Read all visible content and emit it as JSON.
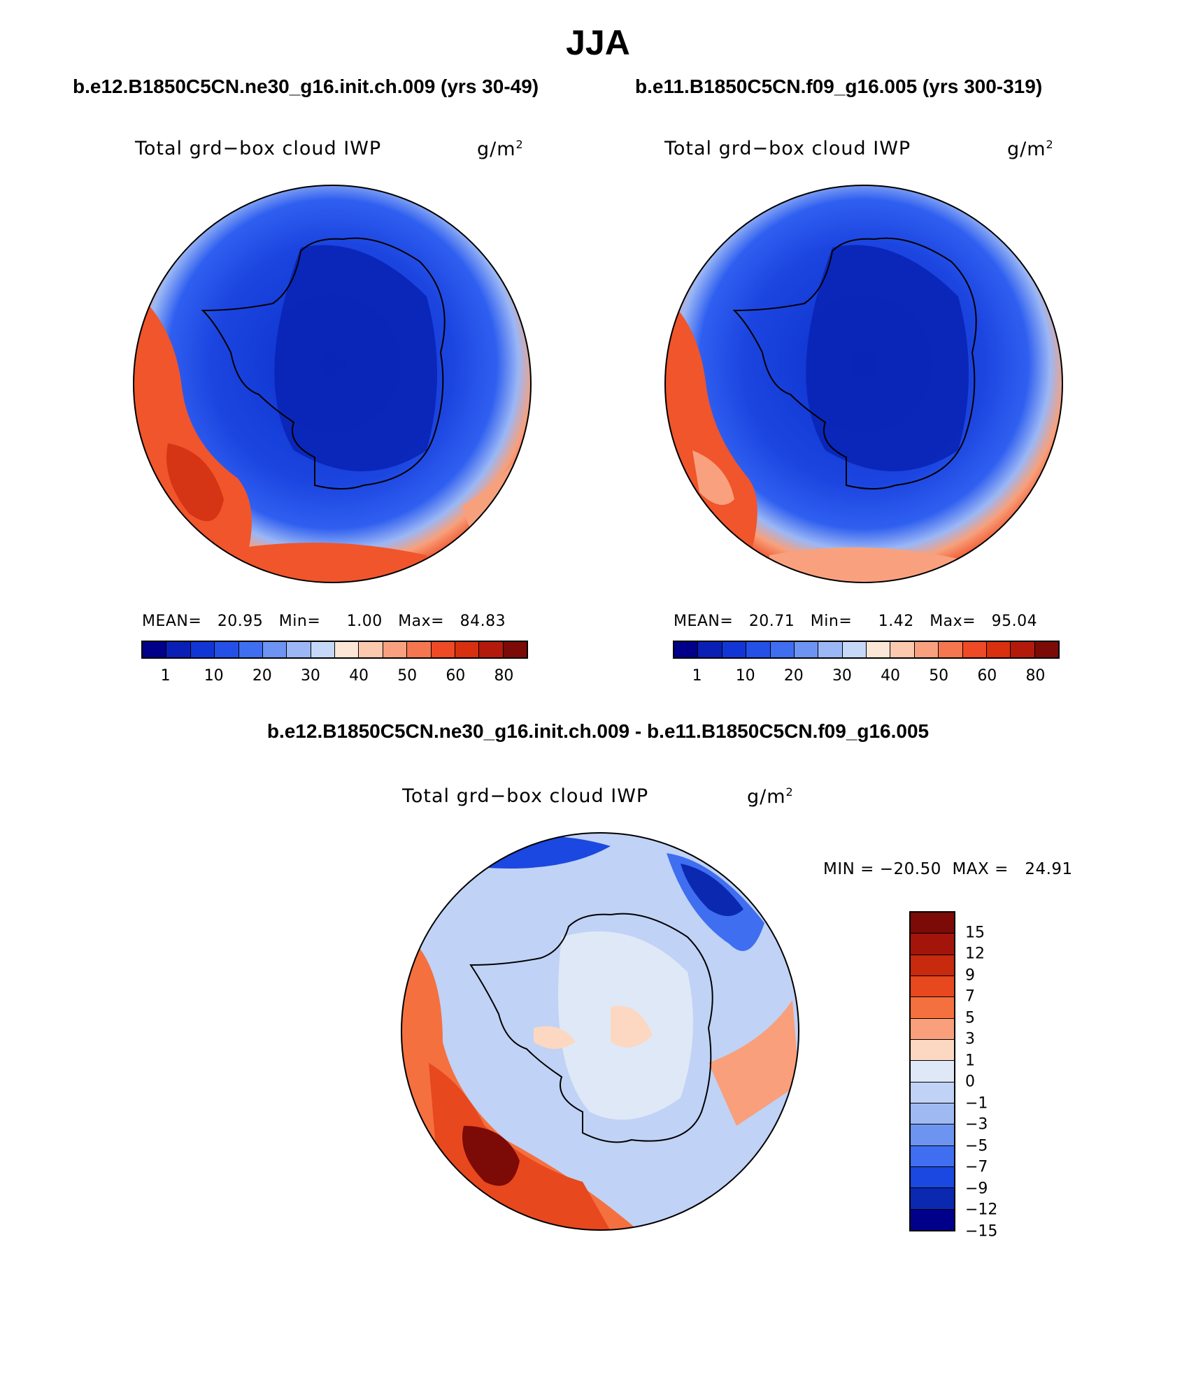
{
  "title": "JJA",
  "panels": [
    {
      "case": "b.e12.B1850C5CN.ne30_g16.init.ch.009 (yrs 30-49)",
      "variable": "Total grd−box cloud IWP",
      "unit_base": "g/m",
      "unit_exp": "2",
      "mean_label": "MEAN=",
      "mean": "20.95",
      "min_label": "Min=",
      "min": "1.00",
      "max_label": "Max=",
      "max": "84.83"
    },
    {
      "case": "b.e11.B1850C5CN.f09_g16.005 (yrs 300-319)",
      "variable": "Total grd−box cloud IWP",
      "unit_base": "g/m",
      "unit_exp": "2",
      "mean_label": "MEAN=",
      "mean": "20.71",
      "min_label": "Min=",
      "min": "1.42",
      "max_label": "Max=",
      "max": "95.04"
    }
  ],
  "colorbar_colors": [
    "#00008a",
    "#0a1fb5",
    "#1236d6",
    "#2450e8",
    "#3f6ef0",
    "#6d94f2",
    "#9bb7f5",
    "#c5d8f7",
    "#fce6d6",
    "#fbc9ad",
    "#f9a17f",
    "#f67650",
    "#ee4a25",
    "#d9300f",
    "#b31a0c",
    "#7c0a06"
  ],
  "colorbar_ticks": [
    "1",
    "10",
    "20",
    "30",
    "40",
    "50",
    "60",
    "80"
  ],
  "diff": {
    "title": "b.e12.B1850C5CN.ne30_g16.init.ch.009 - b.e11.B1850C5CN.f09_g16.005",
    "variable": "Total grd−box cloud IWP",
    "unit_base": "g/m",
    "unit_exp": "2",
    "minmax": "MIN = −20.50  MAX =   24.91",
    "colors": [
      "#7c0a06",
      "#a3150a",
      "#c82a0e",
      "#e8481e",
      "#f5703f",
      "#f99f7b",
      "#fcd8c2",
      "#dfe8f7",
      "#c0d2f5",
      "#9fbaf3",
      "#6d94f0",
      "#3f6ef0",
      "#1b48e0",
      "#0a28b0",
      "#00008a"
    ],
    "ticks": [
      "15",
      "12",
      "9",
      "7",
      "5",
      "3",
      "1",
      "0",
      "−1",
      "−3",
      "−5",
      "−7",
      "−9",
      "−12",
      "−15"
    ]
  }
}
